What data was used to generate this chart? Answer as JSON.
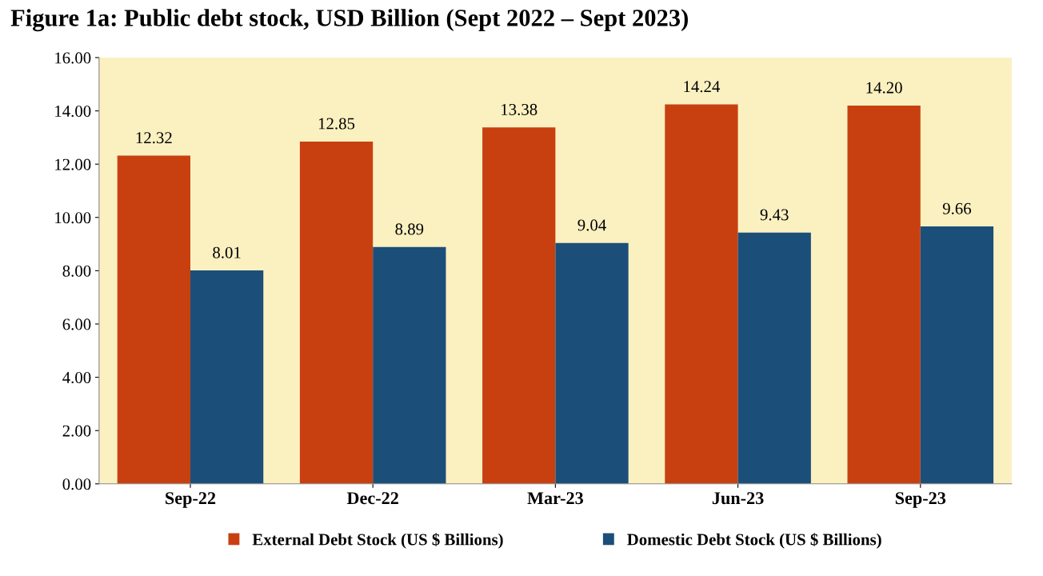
{
  "chart_data": {
    "type": "bar",
    "title": "Figure 1a: Public debt stock, USD Billion (Sept 2022 – Sept 2023)",
    "categories": [
      "Sep-22",
      "Dec-22",
      "Mar-23",
      "Jun-23",
      "Sep-23"
    ],
    "series": [
      {
        "name": "External Debt Stock (US $ Billions)",
        "color": "#c8400f",
        "values": [
          12.32,
          12.85,
          13.38,
          14.24,
          14.2
        ],
        "value_labels": [
          "12.32",
          "12.85",
          "13.38",
          "14.24",
          "14.20"
        ]
      },
      {
        "name": "Domestic Debt Stock (US $ Billions)",
        "color": "#1b4f7a",
        "values": [
          8.01,
          8.89,
          9.04,
          9.43,
          9.66
        ],
        "value_labels": [
          "8.01",
          "8.89",
          "9.04",
          "9.43",
          "9.66"
        ]
      }
    ],
    "ylim": [
      0,
      16
    ],
    "yticks": [
      {
        "value": 0,
        "label": "0.00"
      },
      {
        "value": 2,
        "label": "2.00"
      },
      {
        "value": 4,
        "label": "4.00"
      },
      {
        "value": 6,
        "label": "6.00"
      },
      {
        "value": 8,
        "label": "8.00"
      },
      {
        "value": 10,
        "label": "10.00"
      },
      {
        "value": 12,
        "label": "12.00"
      },
      {
        "value": 14,
        "label": "14.00"
      },
      {
        "value": 16,
        "label": "16.00"
      }
    ],
    "grid": false,
    "legend": "bottom"
  }
}
